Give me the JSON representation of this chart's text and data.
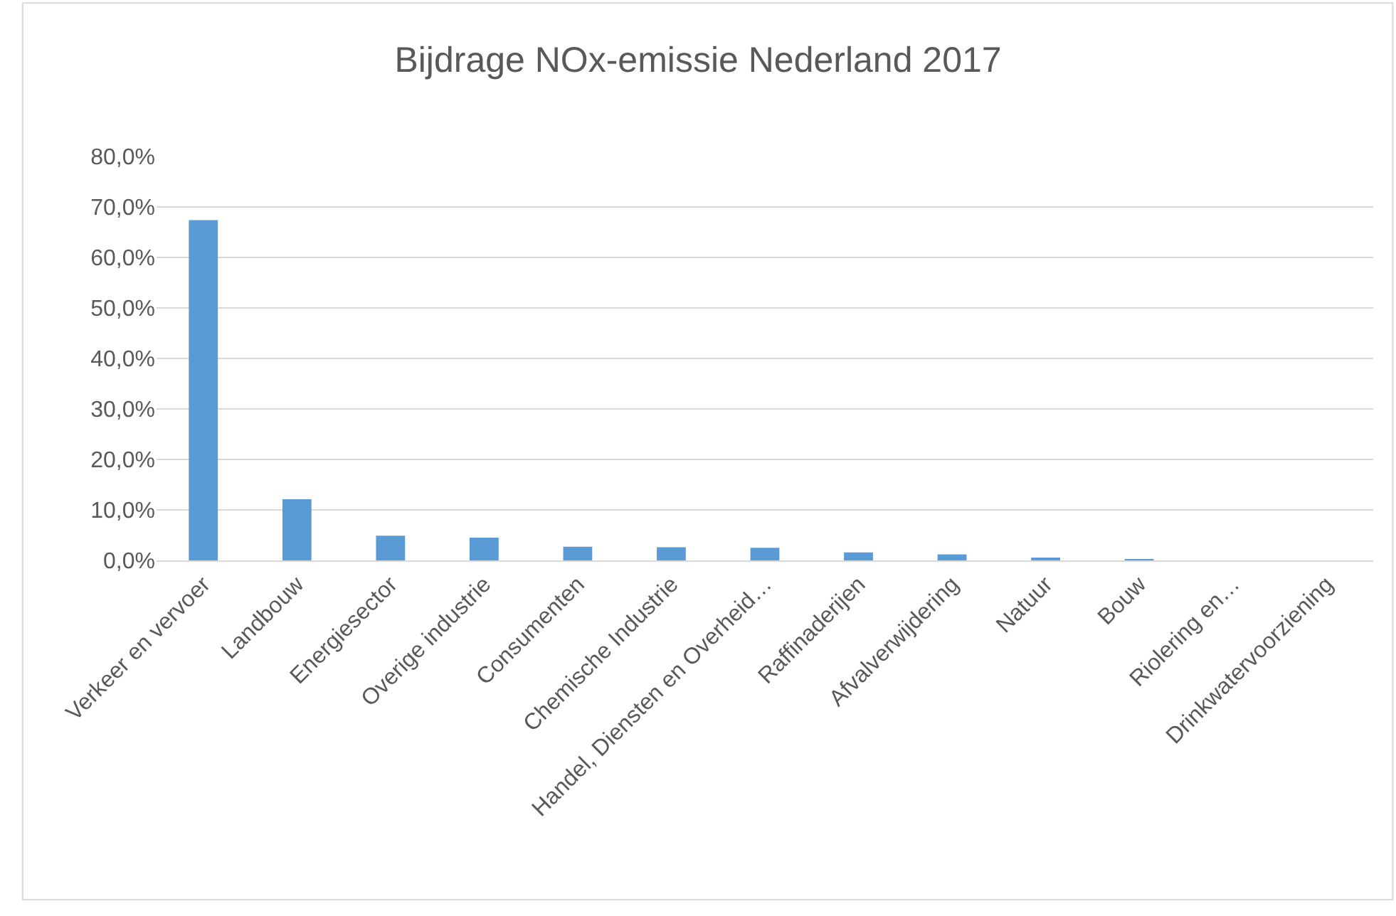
{
  "chart_data": {
    "type": "bar",
    "title": "Bijdrage NOx-emissie Nederland 2017",
    "categories": [
      "Verkeer en vervoer",
      "Landbouw",
      "Energiesector",
      "Overige industrie",
      "Consumenten",
      "Chemische Industrie",
      "Handel, Diensten en Overheid…",
      "Raffinaderijen",
      "Afvalverwijdering",
      "Natuur",
      "Bouw",
      "Riolering en…",
      "Drinkwatervoorziening"
    ],
    "values": [
      67.4,
      12.1,
      4.9,
      4.5,
      2.7,
      2.6,
      2.5,
      1.6,
      1.2,
      0.3,
      0.1,
      0.0,
      0.0
    ],
    "color": "#5b9bd5",
    "ylim": [
      0,
      80
    ],
    "yticks": [
      {
        "value": 0,
        "label": "0,0%"
      },
      {
        "value": 10,
        "label": "10,0%"
      },
      {
        "value": 20,
        "label": "20,0%"
      },
      {
        "value": 30,
        "label": "30,0%"
      },
      {
        "value": 40,
        "label": "40,0%"
      },
      {
        "value": 50,
        "label": "50,0%"
      },
      {
        "value": 60,
        "label": "60,0%"
      },
      {
        "value": 70,
        "label": "70,0%"
      },
      {
        "value": 80,
        "label": "80,0%"
      }
    ],
    "grid": "y"
  }
}
